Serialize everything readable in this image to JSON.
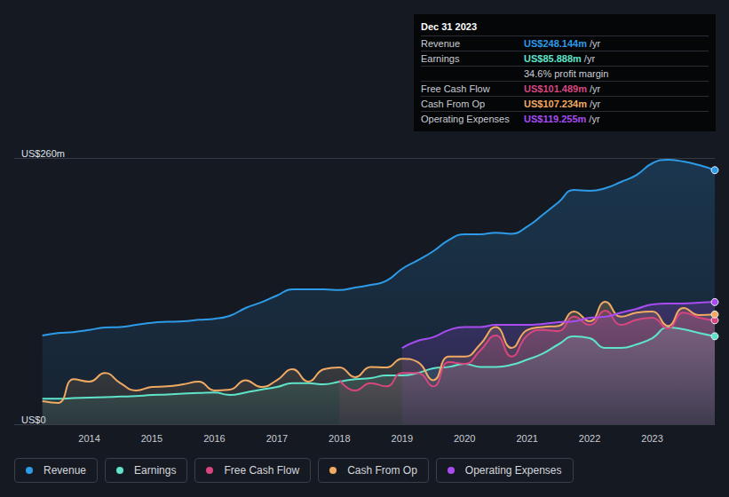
{
  "chart_data": {
    "type": "area",
    "x": [
      2013.25,
      2013.5,
      2013.75,
      2014,
      2014.25,
      2014.5,
      2014.75,
      2015,
      2015.25,
      2015.5,
      2015.75,
      2016,
      2016.25,
      2016.5,
      2016.75,
      2017,
      2017.25,
      2017.5,
      2017.75,
      2018,
      2018.25,
      2018.5,
      2018.75,
      2019,
      2019.25,
      2019.5,
      2019.75,
      2020,
      2020.25,
      2020.5,
      2020.75,
      2021,
      2021.25,
      2021.5,
      2021.75,
      2022,
      2022.25,
      2022.5,
      2022.75,
      2023,
      2023.25,
      2023.5,
      2023.75,
      2024
    ],
    "xlim": [
      2012.8,
      2024
    ],
    "xticks": [
      2014,
      2015,
      2016,
      2017,
      2018,
      2019,
      2020,
      2021,
      2022,
      2023
    ],
    "ylim": [
      0,
      260
    ],
    "yticks": [
      {
        "value": 0,
        "label": "US$0"
      },
      {
        "value": 260,
        "label": "US$260m"
      }
    ],
    "grid": true,
    "legend": "bottom",
    "series": [
      {
        "name": "Revenue",
        "color": "#2d9be8",
        "values": [
          86.7,
          89,
          90,
          92,
          94.5,
          95,
          97,
          99,
          100,
          100.5,
          102,
          103,
          106,
          113.5,
          119,
          125.7,
          131.7,
          131.7,
          131.7,
          131,
          133.5,
          136,
          140,
          151.7,
          160,
          169,
          180,
          185.5,
          185.5,
          187,
          186,
          193,
          204.5,
          216.7,
          228.8,
          228,
          230.5,
          236.6,
          243.5,
          254.8,
          258.3,
          256.5,
          253,
          248.1
        ]
      },
      {
        "name": "Earnings",
        "color": "#5fe3c9",
        "values": [
          25,
          25,
          25.5,
          26,
          26.5,
          27,
          27.5,
          28.6,
          29,
          30,
          30.5,
          31,
          28.6,
          31,
          33.8,
          36.4,
          40,
          40,
          39,
          41.6,
          44,
          45,
          47.7,
          47.7,
          50,
          54.6,
          56,
          59,
          56,
          56,
          58,
          63,
          69,
          78,
          85.8,
          84,
          74.5,
          74.5,
          78,
          84,
          94.5,
          92.7,
          89,
          85.9
        ]
      },
      {
        "name": "Free Cash Flow",
        "color": "#d8457f",
        "values": [
          null,
          null,
          null,
          null,
          null,
          null,
          null,
          null,
          null,
          null,
          null,
          null,
          null,
          null,
          null,
          null,
          null,
          null,
          null,
          43,
          33,
          40,
          37,
          50,
          50,
          37,
          60.7,
          59,
          72,
          86.7,
          66,
          86.7,
          92,
          91,
          105,
          97,
          111,
          97,
          102,
          104,
          93.6,
          109,
          104,
          101.5
        ]
      },
      {
        "name": "Cash From Op",
        "color": "#f2aa62",
        "values": [
          22.5,
          20.8,
          44,
          41.6,
          50,
          40,
          33,
          36.4,
          37,
          39,
          41.6,
          33,
          33.8,
          43,
          36.4,
          43,
          53.7,
          41.6,
          53.7,
          55.5,
          46,
          56,
          55.5,
          64,
          60.7,
          43,
          66,
          66,
          78,
          95,
          74.5,
          92,
          95,
          96,
          110,
          100.5,
          119.6,
          105,
          109,
          110,
          96,
          113.5,
          106.6,
          107.2
        ]
      },
      {
        "name": "Operating Expenses",
        "color": "#a84cf2",
        "values": [
          null,
          null,
          null,
          null,
          null,
          null,
          null,
          null,
          null,
          null,
          null,
          null,
          null,
          null,
          null,
          null,
          null,
          null,
          null,
          null,
          null,
          null,
          null,
          74.5,
          81.5,
          85,
          92,
          95,
          95,
          97,
          97,
          97,
          98,
          99.7,
          100.5,
          104,
          105,
          109,
          112.7,
          117,
          117.9,
          117.9,
          118.7,
          119.3
        ]
      }
    ],
    "info_box": {
      "title": "Dec 31 2023",
      "rows": [
        {
          "label": "Revenue",
          "value": "US$248.144m",
          "unit": "/yr"
        },
        {
          "label": "Earnings",
          "value": "US$85.888m",
          "unit": "/yr",
          "note": "34.6% profit margin"
        },
        {
          "label": "Free Cash Flow",
          "value": "US$101.489m",
          "unit": "/yr"
        },
        {
          "label": "Cash From Op",
          "value": "US$107.234m",
          "unit": "/yr"
        },
        {
          "label": "Operating Expenses",
          "value": "US$119.255m",
          "unit": "/yr"
        }
      ]
    }
  }
}
